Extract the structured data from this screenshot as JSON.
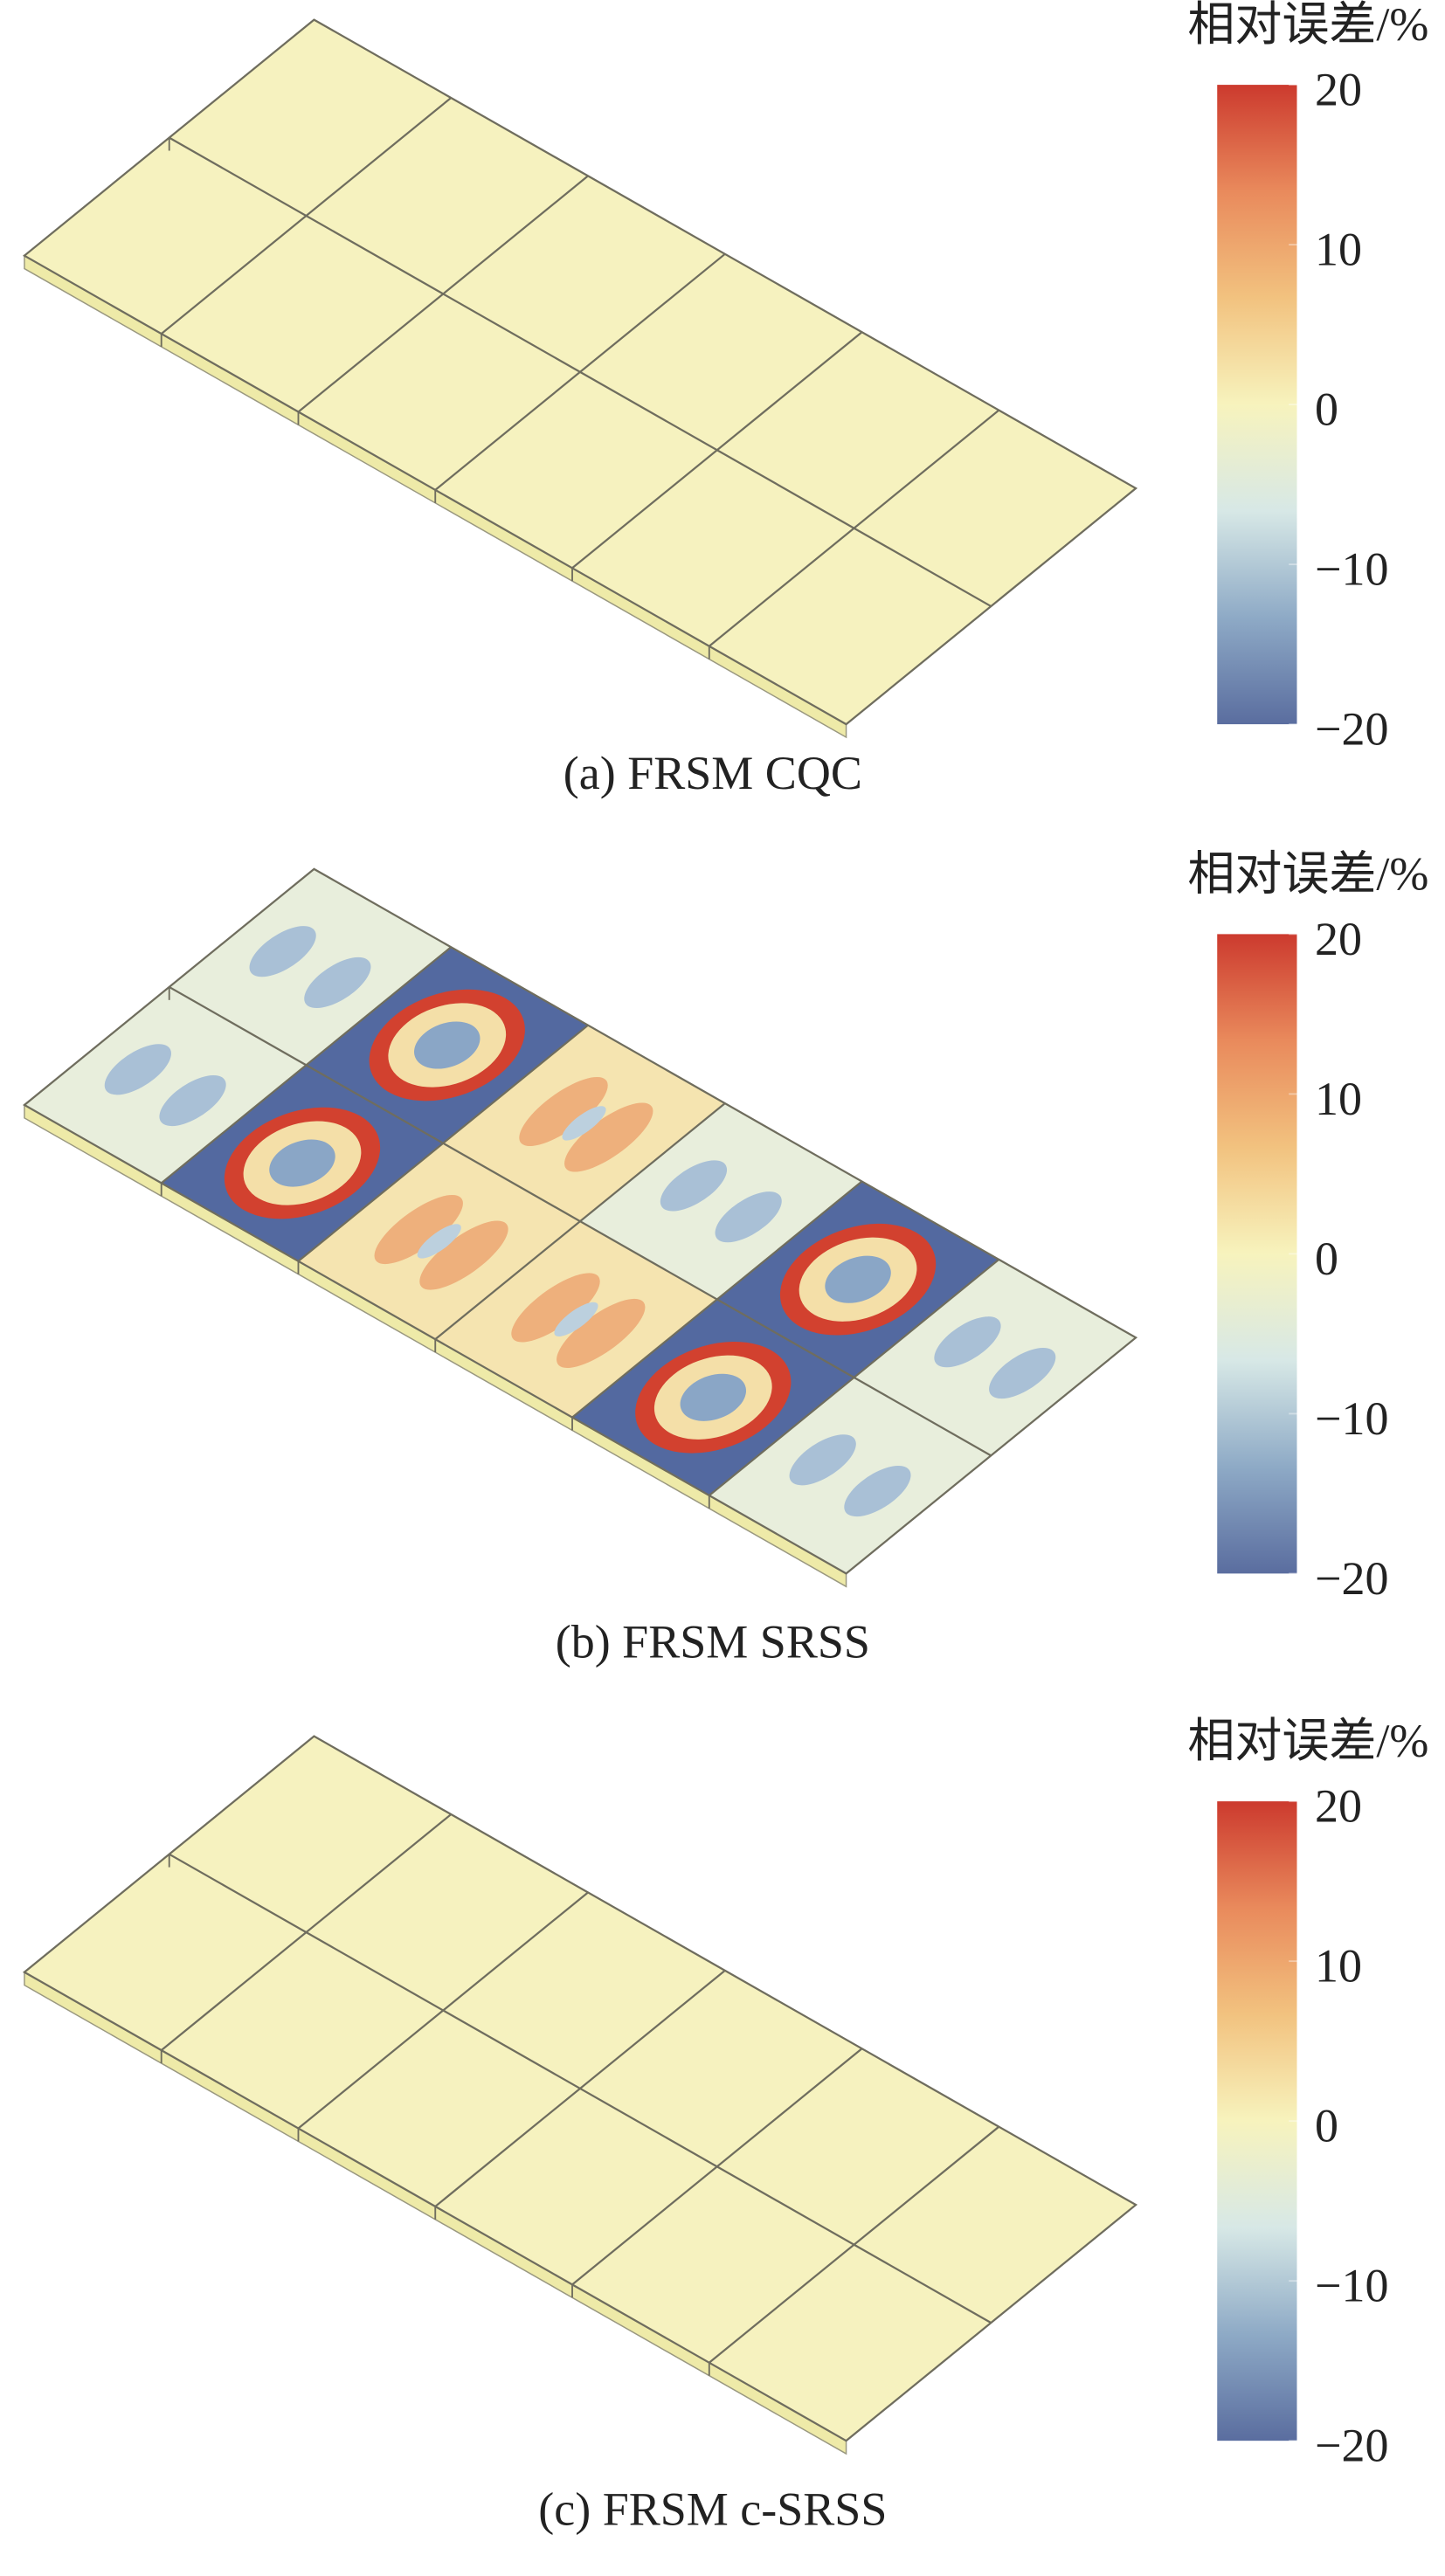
{
  "chart_data": [
    {
      "type": "contour",
      "caption": "(a) FRSM CQC",
      "colorbar": {
        "title": "相对误差/%",
        "lim": [
          -20,
          20
        ],
        "ticks": [
          20,
          10,
          0,
          {
            "value": -10,
            "label": "−10"
          },
          {
            "value": -20,
            "label": "−20"
          }
        ],
        "colormap": [
          "#5a6d9f",
          "#8eaac6",
          "#d7e8e6",
          "#f7f3bd",
          "#f2c27f",
          "#e98a5c",
          "#cc3a2e"
        ]
      }
    },
    {
      "type": "contour",
      "caption": "(b) FRSM SRSS",
      "colorbar": {
        "title": "相对误差/%",
        "lim": [
          -20,
          20
        ],
        "ticks": [
          20,
          10,
          0,
          {
            "value": -10,
            "label": "−10"
          },
          {
            "value": -20,
            "label": "−20"
          }
        ],
        "colormap": [
          "#5a6d9f",
          "#8eaac6",
          "#d7e8e6",
          "#f7f3bd",
          "#f2c27f",
          "#e98a5c",
          "#cc3a2e"
        ]
      }
    },
    {
      "type": "contour",
      "caption": "(c) FRSM c-SRSS",
      "colorbar": {
        "title": "相对误差/%",
        "lim": [
          -20,
          20
        ],
        "ticks": [
          20,
          10,
          0,
          {
            "value": -10,
            "label": "−10"
          },
          {
            "value": -20,
            "label": "−20"
          }
        ],
        "colormap": [
          "#5a6d9f",
          "#8eaac6",
          "#d7e8e6",
          "#f7f3bd",
          "#f2c27f",
          "#e98a5c",
          "#cc3a2e"
        ]
      }
    }
  ]
}
